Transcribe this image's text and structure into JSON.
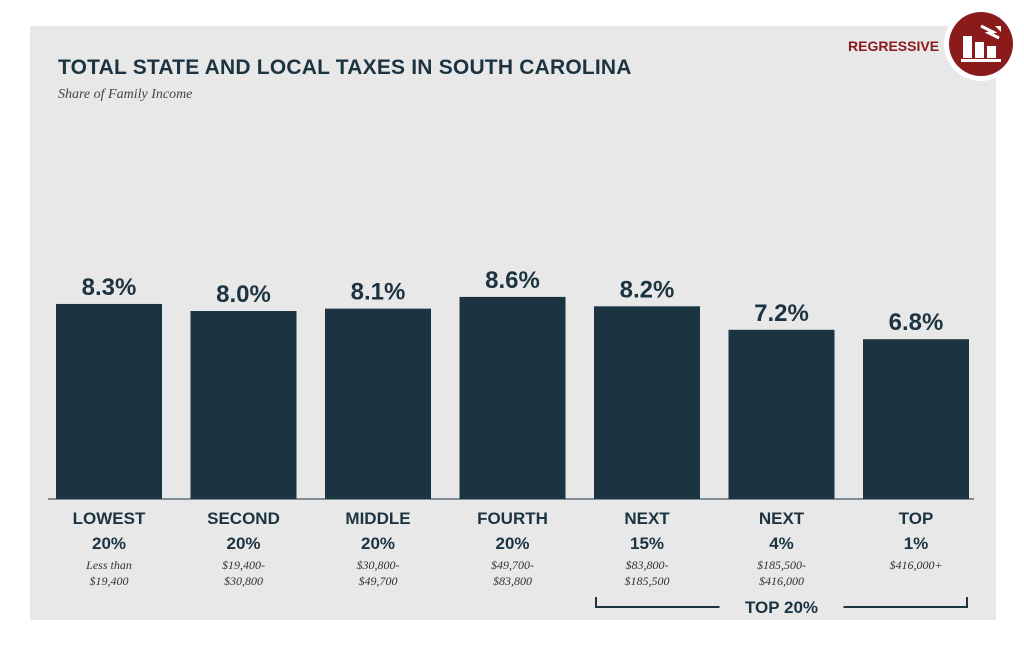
{
  "title": "TOTAL STATE AND LOCAL TAXES IN SOUTH CAROLINA",
  "subtitle": "Share of Family Income",
  "badge": {
    "label": "REGRESSIVE",
    "icon": "regressive-bar-chart-icon"
  },
  "colors": {
    "bar": "#1c3442",
    "accent": "#8b1a1a",
    "panel": "#e8e8e8"
  },
  "chart_data": {
    "type": "bar",
    "title": "TOTAL STATE AND LOCAL TAXES IN SOUTH CAROLINA",
    "subtitle": "Share of Family Income",
    "categories": [
      "LOWEST 20%",
      "SECOND 20%",
      "MIDDLE 20%",
      "FOURTH 20%",
      "NEXT 15%",
      "NEXT 4%",
      "TOP 1%"
    ],
    "category_lines": [
      [
        "LOWEST",
        "20%"
      ],
      [
        "SECOND",
        "20%"
      ],
      [
        "MIDDLE",
        "20%"
      ],
      [
        "FOURTH",
        "20%"
      ],
      [
        "NEXT",
        "15%"
      ],
      [
        "NEXT",
        "4%"
      ],
      [
        "TOP",
        "1%"
      ]
    ],
    "income_ranges": [
      [
        "Less than",
        "$19,400"
      ],
      [
        "$19,400-",
        "$30,800"
      ],
      [
        "$30,800-",
        "$49,700"
      ],
      [
        "$49,700-",
        "$83,800"
      ],
      [
        "$83,800-",
        "$185,500"
      ],
      [
        "$185,500-",
        "$416,000"
      ],
      [
        "$416,000+"
      ]
    ],
    "values": [
      8.3,
      8.0,
      8.1,
      8.6,
      8.2,
      7.2,
      6.8
    ],
    "value_labels": [
      "8.3%",
      "8.0%",
      "8.1%",
      "8.6%",
      "8.2%",
      "7.2%",
      "6.8%"
    ],
    "group_label": "TOP 20%",
    "group_span": [
      "NEXT 15%",
      "TOP 1%"
    ],
    "ylim": [
      0,
      10
    ],
    "grid": false,
    "legend": "none",
    "xlabel": "",
    "ylabel": ""
  }
}
